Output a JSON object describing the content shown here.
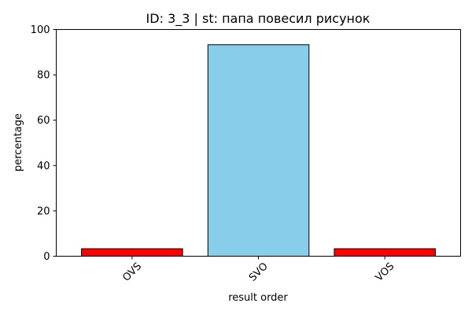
{
  "chart_data": {
    "type": "bar",
    "title": "ID: 3_3 | st: папа повесил рисунок",
    "xlabel": "result order",
    "ylabel": "percentage",
    "categories": [
      "OVS",
      "SVO",
      "VOS"
    ],
    "values": [
      3.3,
      93.3,
      3.3
    ],
    "bar_colors": [
      "#ff0000",
      "#87ceeb",
      "#ff0000"
    ],
    "edge_color": "#000000",
    "ylim": [
      0,
      100
    ],
    "yticks": [
      "0",
      "20",
      "40",
      "60",
      "80",
      "100"
    ],
    "ytick_values": [
      0,
      20,
      40,
      60,
      80,
      100
    ],
    "xtick_rotation_deg": 45,
    "grid": false,
    "legend": "none"
  }
}
